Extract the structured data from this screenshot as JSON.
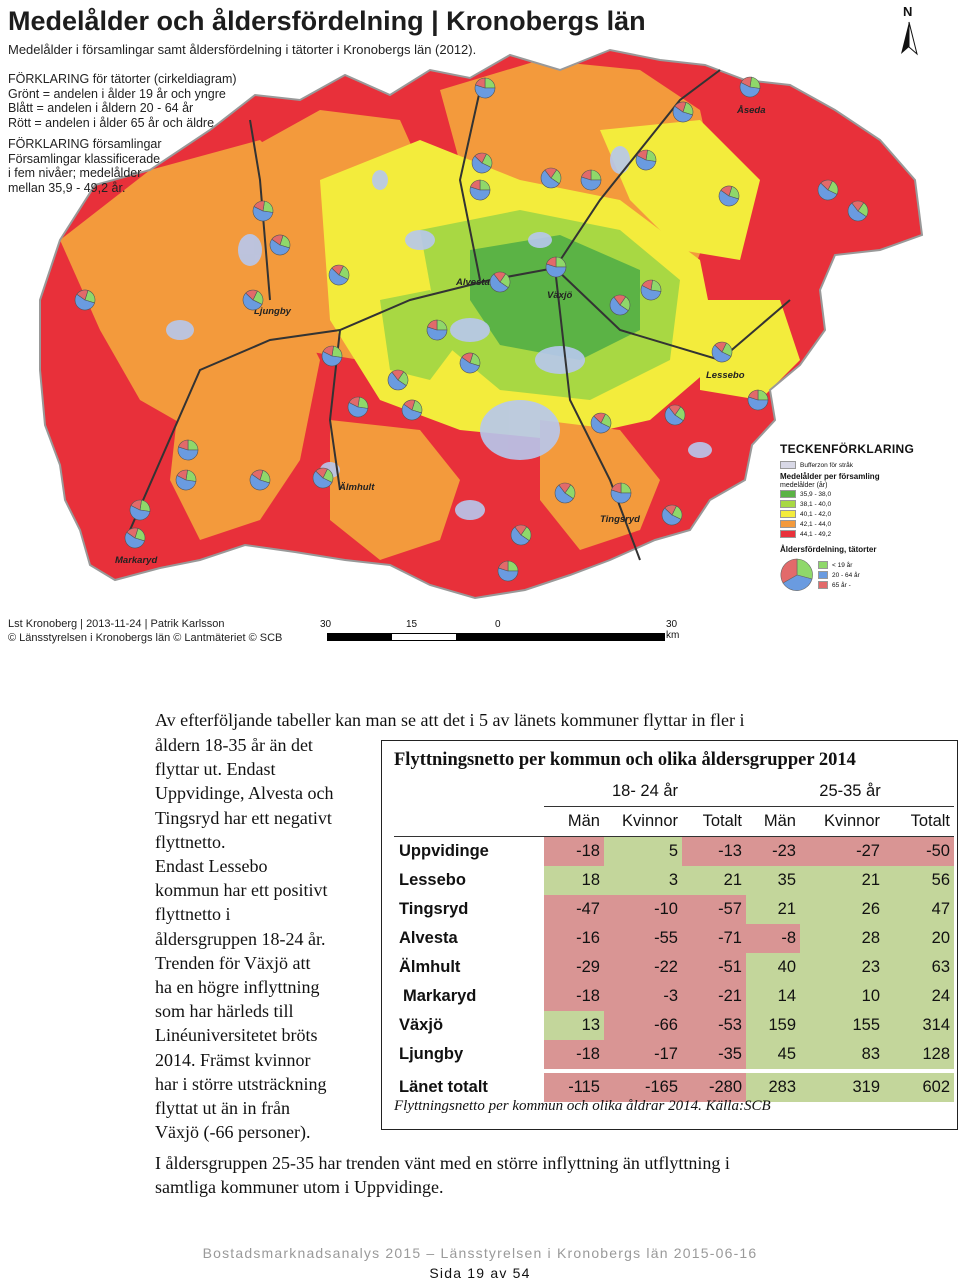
{
  "map": {
    "title": "Medelålder och åldersfördelning | Kronobergs län",
    "subtitle": "Medelålder i församlingar samt åldersfördelning i tätorter i Kronobergs län (2012).",
    "explanation_tatorter": [
      "FÖRKLARING för tätorter (cirkeldiagram)",
      "Grönt = andelen i ålder 19 år och yngre",
      "Blått = andelen i åldern 20 - 64 år",
      "Rött = andelen i ålder 65 år och äldre"
    ],
    "explanation_forsamlingar": [
      "FÖRKLARING församlingar",
      "Församlingar klassificerade",
      "i fem nivåer; medelålder",
      "mellan 35,9 - 49,2 år."
    ],
    "north_label": "N",
    "credit_line1": "Lst Kronoberg | 2013-11-24 | Patrik Karlsson",
    "credit_line2": "© Länsstyrelsen i Kronobergs län © Lantmäteriet © SCB",
    "scale_labels": [
      "30",
      "15",
      "0",
      "30 km"
    ],
    "places": [
      "Åseda",
      "Alvesta",
      "Växjö",
      "Ljungby",
      "Lessebo",
      "Älmhult",
      "Tingsryd",
      "Markaryd"
    ],
    "legend": {
      "title": "TECKENFÖRKLARING",
      "buffer_label": "Bufferzon för stråk",
      "age_title": "Medelålder per församling",
      "age_unit": "medelålder (år)",
      "classes": [
        {
          "label": "35,9 - 38,0",
          "color": "#5bb345"
        },
        {
          "label": "38,1 - 40,0",
          "color": "#a8d843"
        },
        {
          "label": "40,1 - 42,0",
          "color": "#f3ec3c"
        },
        {
          "label": "42,1 - 44,0",
          "color": "#f39a3c"
        },
        {
          "label": "44,1 - 49,2",
          "color": "#e8303a"
        }
      ],
      "dist_title": "Åldersfördelning, tätorter",
      "dist_classes": [
        {
          "label": "< 19 år",
          "color": "#8fd86a"
        },
        {
          "label": "20 - 64 år",
          "color": "#6a9be0"
        },
        {
          "label": "65 år -",
          "color": "#e26a6a"
        }
      ]
    }
  },
  "text": {
    "intro": "Av efterföljande tabeller kan man se att det i 5 av länets kommuner flyttar in fler i",
    "side_lines": [
      "åldern 18-35 år än det",
      "flyttar ut. Endast",
      "Uppvidinge, Alvesta och",
      "Tingsryd har ett negativt",
      "flyttnetto.",
      "Endast Lessebo",
      "kommun har ett positivt",
      "flyttnetto i",
      "åldersgruppen 18-24 år.",
      "Trenden för Växjö att",
      "ha en högre inflyttning",
      "som har härleds till",
      "Linéuniversitetet bröts",
      "2014. Främst kvinnor",
      "har i större utsträckning",
      "flyttat ut än in från",
      "Växjö (-66 personer)."
    ],
    "final_lines": [
      "I åldersgruppen 25-35 har trenden vänt med en större inflyttning än utflyttning i",
      "samtliga kommuner utom i Uppvidinge."
    ]
  },
  "table": {
    "title": "Flyttningsnetto per kommun och olika åldersgrupper 2014",
    "groups": [
      "18- 24 år",
      "25-35 år"
    ],
    "subheaders": [
      "Män",
      "Kvinnor",
      "Totalt",
      "Män",
      "Kvinnor",
      "Totalt"
    ],
    "colors": {
      "negative": "#d99594",
      "positive": "#c3d69b"
    },
    "rows": [
      {
        "name": "Uppvidinge",
        "values": [
          -18,
          5,
          -13,
          -23,
          -27,
          -50
        ]
      },
      {
        "name": "Lessebo",
        "values": [
          18,
          3,
          21,
          35,
          21,
          56
        ]
      },
      {
        "name": "Tingsryd",
        "values": [
          -47,
          -10,
          -57,
          21,
          26,
          47
        ]
      },
      {
        "name": "Alvesta",
        "values": [
          -16,
          -55,
          -71,
          -8,
          28,
          20
        ]
      },
      {
        "name": "Älmhult",
        "values": [
          -29,
          -22,
          -51,
          40,
          23,
          63
        ]
      },
      {
        "name": "Markaryd",
        "values": [
          -18,
          -3,
          -21,
          14,
          10,
          24
        ]
      },
      {
        "name": "Växjö",
        "values": [
          13,
          -66,
          -53,
          159,
          155,
          314
        ]
      },
      {
        "name": "Ljungby",
        "values": [
          -18,
          -17,
          -35,
          45,
          83,
          128
        ]
      }
    ],
    "total": {
      "name": "Länet totalt",
      "values": [
        -115,
        -165,
        -280,
        283,
        319,
        602
      ]
    },
    "caption": "Flyttningsnetto per kommun och olika åldrar 2014. Källa:SCB"
  },
  "footer": {
    "line1": "Bostadsmarknadsanalys 2015 – Länsstyrelsen i Kronobergs län 2015-06-16",
    "line2": "Sida 19 av 54"
  }
}
